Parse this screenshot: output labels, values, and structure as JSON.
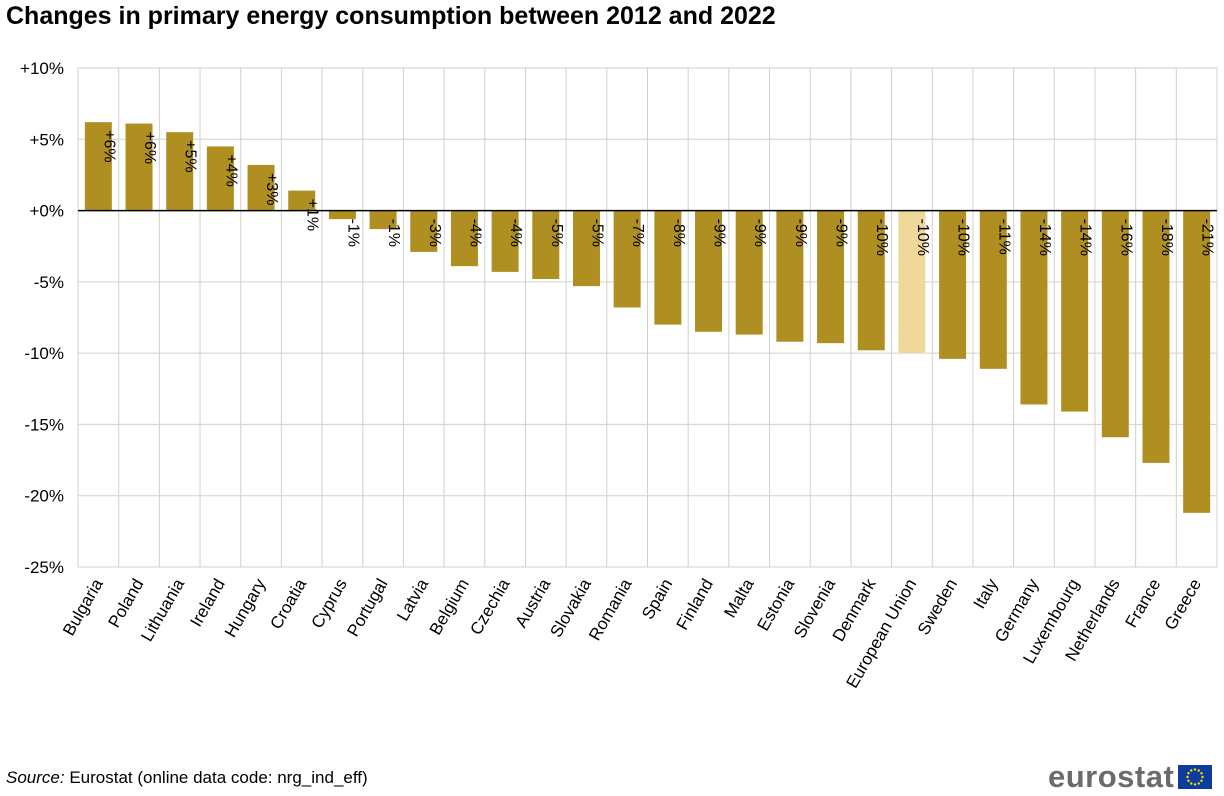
{
  "title": "Changes in primary energy consumption between 2012 and 2022",
  "source": {
    "label": "Source:",
    "text": " Eurostat (online data code: nrg_ind_eff)"
  },
  "logo": {
    "text": "eurostat",
    "icon": "eu-flag-icon"
  },
  "colors": {
    "bar": "#b08f22",
    "highlight": "#eed99a",
    "grid": "#d0d0d0",
    "axis": "#000000",
    "flag_blue": "#0c3d9c",
    "flag_star": "#ffdd00"
  },
  "chart_data": {
    "type": "bar",
    "title": "Changes in primary energy consumption between 2012 and 2022",
    "xlabel": "",
    "ylabel": "",
    "ylim": [
      -25,
      10
    ],
    "yticks": [
      10,
      5,
      0,
      -5,
      -10,
      -15,
      -20,
      -25
    ],
    "ytick_labels": [
      "+10%",
      "+5%",
      "+0%",
      "-5%",
      "-10%",
      "-15%",
      "-20%",
      "-25%"
    ],
    "grid": true,
    "highlight_category": "European Union",
    "categories": [
      "Bulgaria",
      "Poland",
      "Lithuania",
      "Ireland",
      "Hungary",
      "Croatia",
      "Cyprus",
      "Portugal",
      "Latvia",
      "Belgium",
      "Czechia",
      "Austria",
      "Slovakia",
      "Romania",
      "Spain",
      "Finland",
      "Malta",
      "Estonia",
      "Slovenia",
      "Denmark",
      "European Union",
      "Sweden",
      "Italy",
      "Germany",
      "Luxembourg",
      "Netherlands",
      "France",
      "Greece"
    ],
    "values": [
      6.2,
      6.1,
      5.5,
      4.5,
      3.2,
      1.4,
      -0.6,
      -1.3,
      -2.9,
      -3.9,
      -4.3,
      -4.8,
      -5.3,
      -6.8,
      -8.0,
      -8.5,
      -8.7,
      -9.2,
      -9.3,
      -9.8,
      -10.0,
      -10.4,
      -11.1,
      -13.6,
      -14.1,
      -15.9,
      -17.7,
      -21.2
    ],
    "data_labels": [
      "+6%",
      "+6%",
      "+5%",
      "+4%",
      "+3%",
      "+1%",
      "-1%",
      "-1%",
      "-3%",
      "-4%",
      "-4%",
      "-5%",
      "-5%",
      "-7%",
      "-8%",
      "-9%",
      "-9%",
      "-9%",
      "-9%",
      "-10%",
      "-10%",
      "-10%",
      "-11%",
      "-14%",
      "-14%",
      "-16%",
      "-18%",
      "-21%"
    ]
  }
}
